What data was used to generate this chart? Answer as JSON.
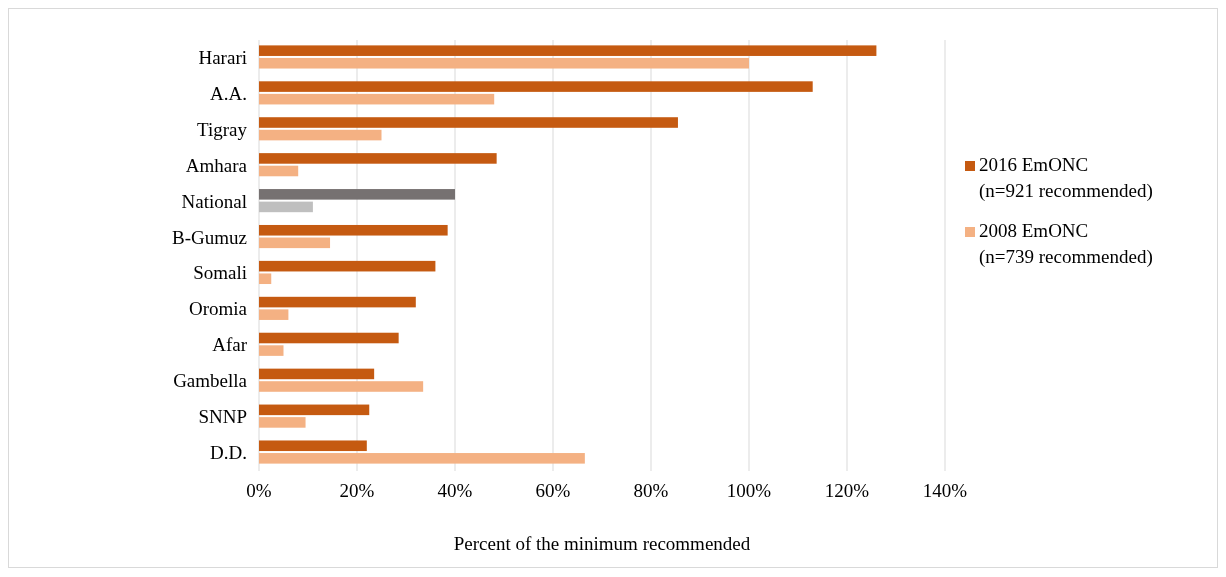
{
  "chart_data": {
    "type": "bar",
    "orientation": "horizontal",
    "xlabel": "Percent of the minimum recommended",
    "categories": [
      "Harari",
      "A.A.",
      "Tigray",
      "Amhara",
      "National",
      "B-Gumuz",
      "Somali",
      "Oromia",
      "Afar",
      "Gambella",
      "SNNP",
      "D.D."
    ],
    "series": [
      {
        "name": "2016 EmONC\n(n=921 recommended)",
        "color": "#c55a11",
        "colors": [
          "#c55a11",
          "#c55a11",
          "#c55a11",
          "#c55a11",
          "#767171",
          "#c55a11",
          "#c55a11",
          "#c55a11",
          "#c55a11",
          "#c55a11",
          "#c55a11",
          "#c55a11"
        ],
        "values": [
          126,
          113,
          85.5,
          48.5,
          40,
          38.5,
          36,
          32,
          28.5,
          23.5,
          22.5,
          22
        ]
      },
      {
        "name": "2008 EmONC\n(n=739 recommended)",
        "color": "#f4b183",
        "colors": [
          "#f4b183",
          "#f4b183",
          "#f4b183",
          "#f4b183",
          "#bfbfbf",
          "#f4b183",
          "#f4b183",
          "#f4b183",
          "#f4b183",
          "#f4b183",
          "#f4b183",
          "#f4b183"
        ],
        "values": [
          100,
          48,
          25,
          8,
          11,
          14.5,
          2.5,
          6,
          5,
          33.5,
          9.5,
          66.5
        ]
      }
    ],
    "xlim": [
      0,
      140
    ],
    "xticks": [
      {
        "value": 0,
        "label": "0%"
      },
      {
        "value": 20,
        "label": "20%"
      },
      {
        "value": 40,
        "label": "40%"
      },
      {
        "value": 60,
        "label": "60%"
      },
      {
        "value": 80,
        "label": "80%"
      },
      {
        "value": 100,
        "label": "100%"
      },
      {
        "value": 120,
        "label": "120%"
      },
      {
        "value": 140,
        "label": "140%"
      }
    ],
    "grid": "x",
    "legend": "right"
  }
}
